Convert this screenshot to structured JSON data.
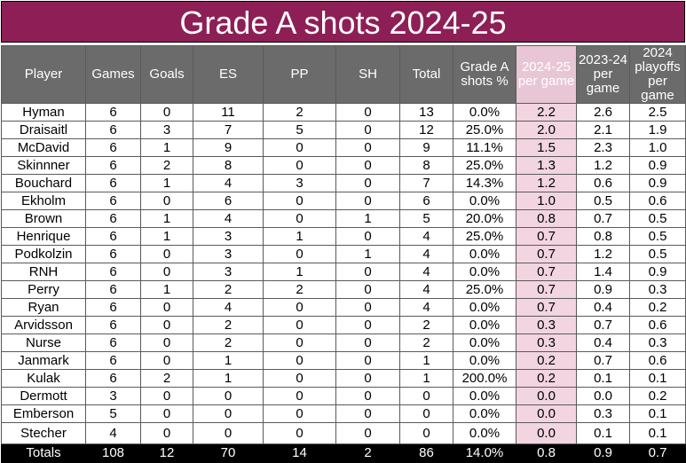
{
  "title": "Grade A shots 2024-25",
  "columns": [
    "Player",
    "Games",
    "Goals",
    "ES",
    "PP",
    "SH",
    "Total",
    "Grade A shots %",
    "2024-25 per game",
    "2023-24 per game",
    "2024 playoffs per game"
  ],
  "highlight_color": "#f2d5e0",
  "header_color": "#6b6b6b",
  "title_color": "#8d1f56",
  "rows": [
    [
      "Hyman",
      "6",
      "0",
      "11",
      "2",
      "0",
      "13",
      "0.0%",
      "2.2",
      "2.6",
      "2.5"
    ],
    [
      "Draisaitl",
      "6",
      "3",
      "7",
      "5",
      "0",
      "12",
      "25.0%",
      "2.0",
      "2.1",
      "1.9"
    ],
    [
      "McDavid",
      "6",
      "1",
      "9",
      "0",
      "0",
      "9",
      "11.1%",
      "1.5",
      "2.3",
      "1.0"
    ],
    [
      "Skinnner",
      "6",
      "2",
      "8",
      "0",
      "0",
      "8",
      "25.0%",
      "1.3",
      "1.2",
      "0.9"
    ],
    [
      "Bouchard",
      "6",
      "1",
      "4",
      "3",
      "0",
      "7",
      "14.3%",
      "1.2",
      "0.6",
      "0.9"
    ],
    [
      "Ekholm",
      "6",
      "0",
      "6",
      "0",
      "0",
      "6",
      "0.0%",
      "1.0",
      "0.5",
      "0.6"
    ],
    [
      "Brown",
      "6",
      "1",
      "4",
      "0",
      "1",
      "5",
      "20.0%",
      "0.8",
      "0.7",
      "0.5"
    ],
    [
      "Henrique",
      "6",
      "1",
      "3",
      "1",
      "0",
      "4",
      "25.0%",
      "0.7",
      "0.8",
      "0.5"
    ],
    [
      "Podkolzin",
      "6",
      "0",
      "3",
      "0",
      "1",
      "4",
      "0.0%",
      "0.7",
      "1.2",
      "0.5"
    ],
    [
      "RNH",
      "6",
      "0",
      "3",
      "1",
      "0",
      "4",
      "0.0%",
      "0.7",
      "1.4",
      "0.9"
    ],
    [
      "Perry",
      "6",
      "1",
      "2",
      "2",
      "0",
      "4",
      "25.0%",
      "0.7",
      "0.9",
      "0.3"
    ],
    [
      "Ryan",
      "6",
      "0",
      "4",
      "0",
      "0",
      "4",
      "0.0%",
      "0.7",
      "0.4",
      "0.2"
    ],
    [
      "Arvidsson",
      "6",
      "0",
      "2",
      "0",
      "0",
      "2",
      "0.0%",
      "0.3",
      "0.7",
      "0.6"
    ],
    [
      "Nurse",
      "6",
      "0",
      "2",
      "0",
      "0",
      "2",
      "0.0%",
      "0.3",
      "0.4",
      "0.3"
    ],
    [
      "Janmark",
      "6",
      "0",
      "1",
      "0",
      "0",
      "1",
      "0.0%",
      "0.2",
      "0.7",
      "0.6"
    ],
    [
      "Kulak",
      "6",
      "2",
      "1",
      "0",
      "0",
      "1",
      "200.0%",
      "0.2",
      "0.1",
      "0.1"
    ],
    [
      "Dermott",
      "3",
      "0",
      "0",
      "0",
      "0",
      "0",
      "0.0%",
      "0.0",
      "0.0",
      "0.2"
    ],
    [
      "Emberson",
      "5",
      "0",
      "0",
      "0",
      "0",
      "0",
      "0.0%",
      "0.0",
      "0.3",
      "0.1"
    ],
    [
      "Stecher",
      "4",
      "0",
      "0",
      "0",
      "0",
      "0",
      "0.0%",
      "0.0",
      "0.1",
      "0.1"
    ]
  ],
  "totals": [
    "Totals",
    "108",
    "12",
    "70",
    "14",
    "2",
    "86",
    "14.0%",
    "0.8",
    "0.9",
    "0.7"
  ]
}
